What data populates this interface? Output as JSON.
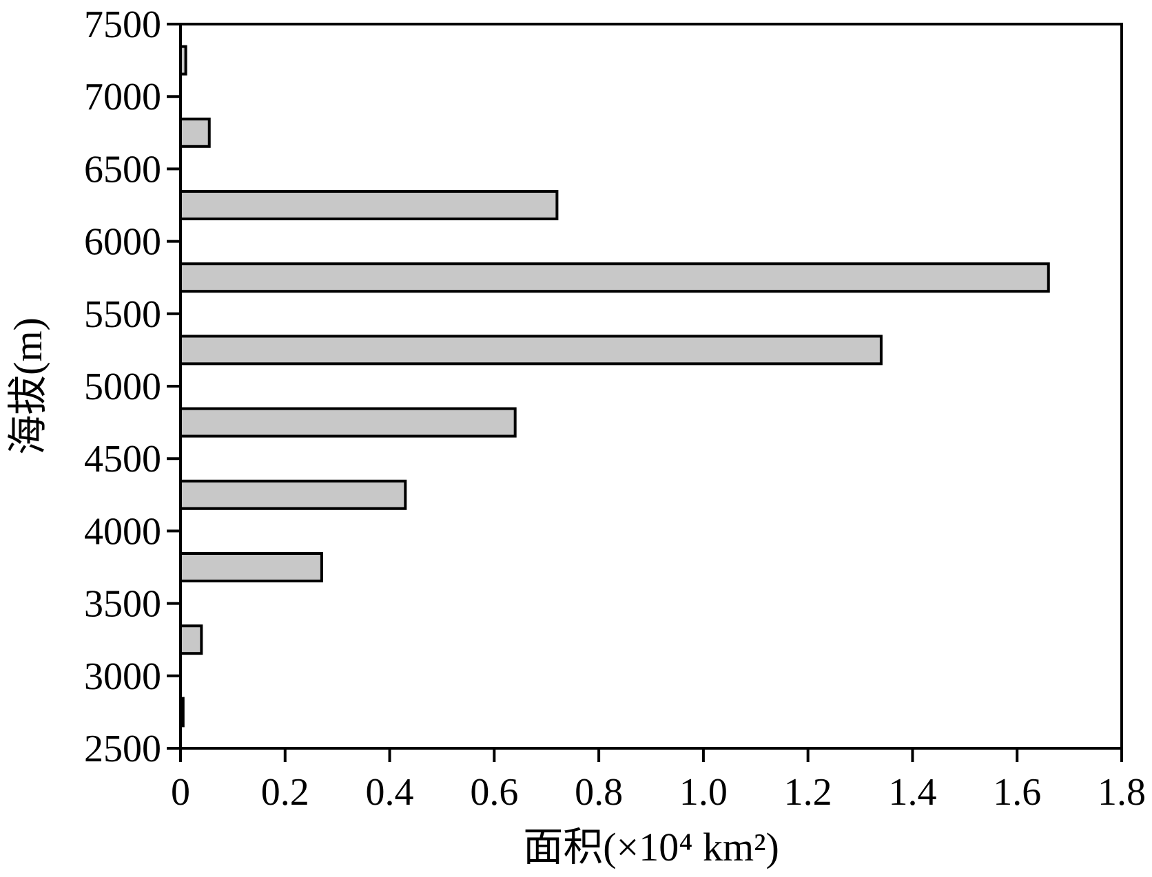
{
  "chart_data": {
    "type": "bar",
    "orientation": "horizontal",
    "xlabel": "面积(×10⁴ km²)",
    "ylabel": "海拔(m)",
    "xlim": [
      0,
      1.8
    ],
    "ylim": [
      2500,
      7500
    ],
    "x_ticks": [
      "0",
      "0.2",
      "0.4",
      "0.6",
      "0.8",
      "1.0",
      "1.2",
      "1.4",
      "1.6",
      "1.8"
    ],
    "x_tick_values": [
      0,
      0.2,
      0.4,
      0.6,
      0.8,
      1.0,
      1.2,
      1.4,
      1.6,
      1.8
    ],
    "y_ticks": [
      "2500",
      "3000",
      "3500",
      "4000",
      "4500",
      "5000",
      "5500",
      "6000",
      "6500",
      "7000",
      "7500"
    ],
    "y_tick_values": [
      2500,
      3000,
      3500,
      4000,
      4500,
      5000,
      5500,
      6000,
      6500,
      7000,
      7500
    ],
    "bin_width": 500,
    "bins": [
      {
        "y_center": 2750,
        "value": 0.005
      },
      {
        "y_center": 3250,
        "value": 0.04
      },
      {
        "y_center": 3750,
        "value": 0.27
      },
      {
        "y_center": 4250,
        "value": 0.43
      },
      {
        "y_center": 4750,
        "value": 0.64
      },
      {
        "y_center": 5250,
        "value": 1.34
      },
      {
        "y_center": 5750,
        "value": 1.66
      },
      {
        "y_center": 6250,
        "value": 0.72
      },
      {
        "y_center": 6750,
        "value": 0.055
      },
      {
        "y_center": 7250,
        "value": 0.01
      }
    ],
    "grid": false,
    "legend": "none",
    "bar_color": "#c8c8c8",
    "bar_edge_color": "#000000"
  }
}
